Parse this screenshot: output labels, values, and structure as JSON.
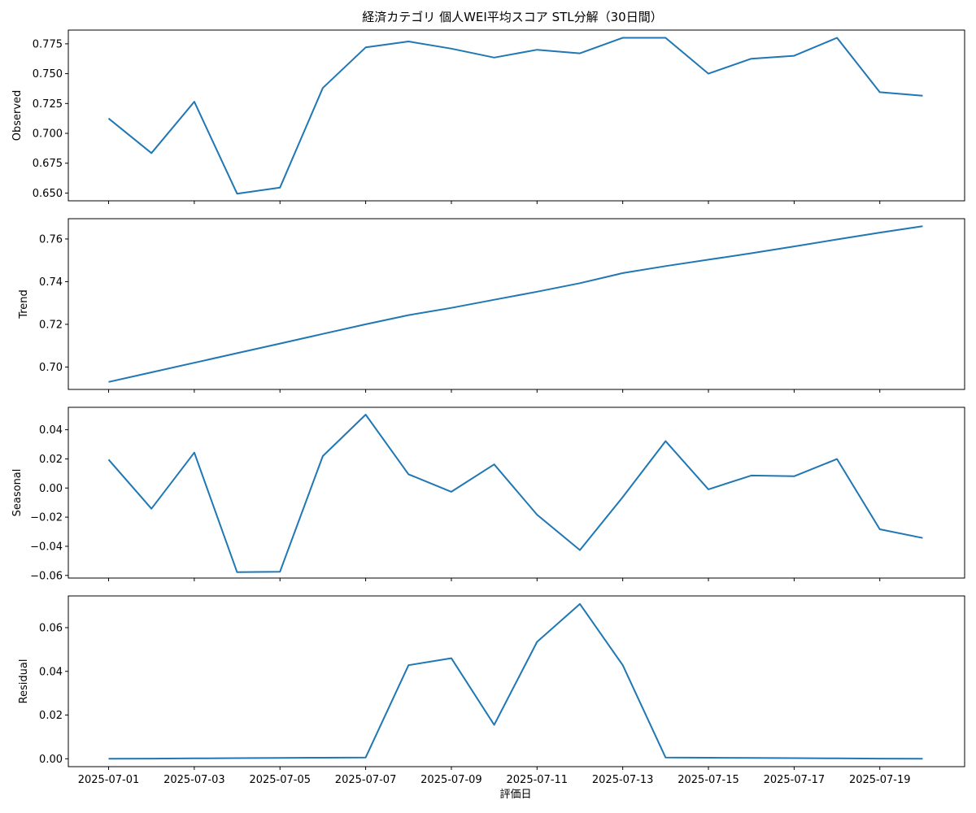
{
  "title": "経済カテゴリ 個人WEI平均スコア STL分解（30日間）",
  "xlabel": "評価日",
  "line_color": "#1f77b4",
  "chart_data": [
    {
      "type": "line",
      "name": "observed",
      "ylabel": "Observed",
      "x": [
        "2025-07-01",
        "2025-07-02",
        "2025-07-03",
        "2025-07-04",
        "2025-07-05",
        "2025-07-06",
        "2025-07-07",
        "2025-07-08",
        "2025-07-09",
        "2025-07-10",
        "2025-07-11",
        "2025-07-12",
        "2025-07-13",
        "2025-07-14",
        "2025-07-15",
        "2025-07-16",
        "2025-07-17",
        "2025-07-18",
        "2025-07-19",
        "2025-07-20"
      ],
      "values": [
        0.7125,
        0.6835,
        0.7265,
        0.6495,
        0.6545,
        0.738,
        0.772,
        0.777,
        0.771,
        0.7635,
        0.77,
        0.767,
        0.78,
        0.78,
        0.75,
        0.7625,
        0.765,
        0.78,
        0.7345,
        0.7315
      ],
      "ylim": [
        0.6435,
        0.7865
      ],
      "yticks": [
        0.65,
        0.675,
        0.7,
        0.725,
        0.75,
        0.775
      ],
      "ytick_labels": [
        "0.650",
        "0.675",
        "0.700",
        "0.725",
        "0.750",
        "0.775"
      ]
    },
    {
      "type": "line",
      "name": "trend",
      "ylabel": "Trend",
      "x": [
        "2025-07-01",
        "2025-07-02",
        "2025-07-03",
        "2025-07-04",
        "2025-07-05",
        "2025-07-06",
        "2025-07-07",
        "2025-07-08",
        "2025-07-09",
        "2025-07-10",
        "2025-07-11",
        "2025-07-12",
        "2025-07-13",
        "2025-07-14",
        "2025-07-15",
        "2025-07-16",
        "2025-07-17",
        "2025-07-18",
        "2025-07-19",
        "2025-07-20"
      ],
      "values": [
        0.693,
        0.6975,
        0.702,
        0.7065,
        0.711,
        0.7155,
        0.72,
        0.7243,
        0.7277,
        0.7315,
        0.7353,
        0.7393,
        0.744,
        0.7473,
        0.7503,
        0.7533,
        0.7565,
        0.7598,
        0.763,
        0.766
      ],
      "ylim": [
        0.6895,
        0.7695
      ],
      "yticks": [
        0.7,
        0.72,
        0.74,
        0.76
      ],
      "ytick_labels": [
        "0.70",
        "0.72",
        "0.74",
        "0.76"
      ]
    },
    {
      "type": "line",
      "name": "seasonal",
      "ylabel": "Seasonal",
      "x": [
        "2025-07-01",
        "2025-07-02",
        "2025-07-03",
        "2025-07-04",
        "2025-07-05",
        "2025-07-06",
        "2025-07-07",
        "2025-07-08",
        "2025-07-09",
        "2025-07-10",
        "2025-07-11",
        "2025-07-12",
        "2025-07-13",
        "2025-07-14",
        "2025-07-15",
        "2025-07-16",
        "2025-07-17",
        "2025-07-18",
        "2025-07-19",
        "2025-07-20"
      ],
      "values": [
        0.0195,
        -0.0142,
        0.0243,
        -0.0578,
        -0.0575,
        0.0219,
        0.0504,
        0.0094,
        -0.0026,
        0.0162,
        -0.0183,
        -0.0426,
        -0.0062,
        0.0322,
        -0.0009,
        0.0086,
        0.0081,
        0.0199,
        -0.0283,
        -0.0343
      ],
      "ylim": [
        -0.0618,
        0.0554
      ],
      "yticks": [
        -0.06,
        -0.04,
        -0.02,
        0.0,
        0.02,
        0.04
      ],
      "ytick_labels": [
        "−0.06",
        "−0.04",
        "−0.02",
        "0.00",
        "0.02",
        "0.04"
      ]
    },
    {
      "type": "line",
      "name": "residual",
      "ylabel": "Residual",
      "x": [
        "2025-07-01",
        "2025-07-02",
        "2025-07-03",
        "2025-07-04",
        "2025-07-05",
        "2025-07-06",
        "2025-07-07",
        "2025-07-08",
        "2025-07-09",
        "2025-07-10",
        "2025-07-11",
        "2025-07-12",
        "2025-07-13",
        "2025-07-14",
        "2025-07-15",
        "2025-07-16",
        "2025-07-17",
        "2025-07-18",
        "2025-07-19",
        "2025-07-20"
      ],
      "values": [
        0.0,
        0.0001,
        0.0002,
        0.0003,
        0.0004,
        0.0005,
        0.0006,
        0.0428,
        0.046,
        0.0155,
        0.0535,
        0.0708,
        0.0428,
        0.0006,
        0.0005,
        0.0004,
        0.0003,
        0.0002,
        0.0001,
        0.0
      ],
      "ylim": [
        -0.0036,
        0.0745
      ],
      "yticks": [
        0.0,
        0.02,
        0.04,
        0.06
      ],
      "ytick_labels": [
        "0.00",
        "0.02",
        "0.04",
        "0.06"
      ]
    }
  ],
  "xtick_labels": [
    "2025-07-01",
    "2025-07-03",
    "2025-07-05",
    "2025-07-07",
    "2025-07-09",
    "2025-07-11",
    "2025-07-13",
    "2025-07-15",
    "2025-07-17",
    "2025-07-19"
  ]
}
